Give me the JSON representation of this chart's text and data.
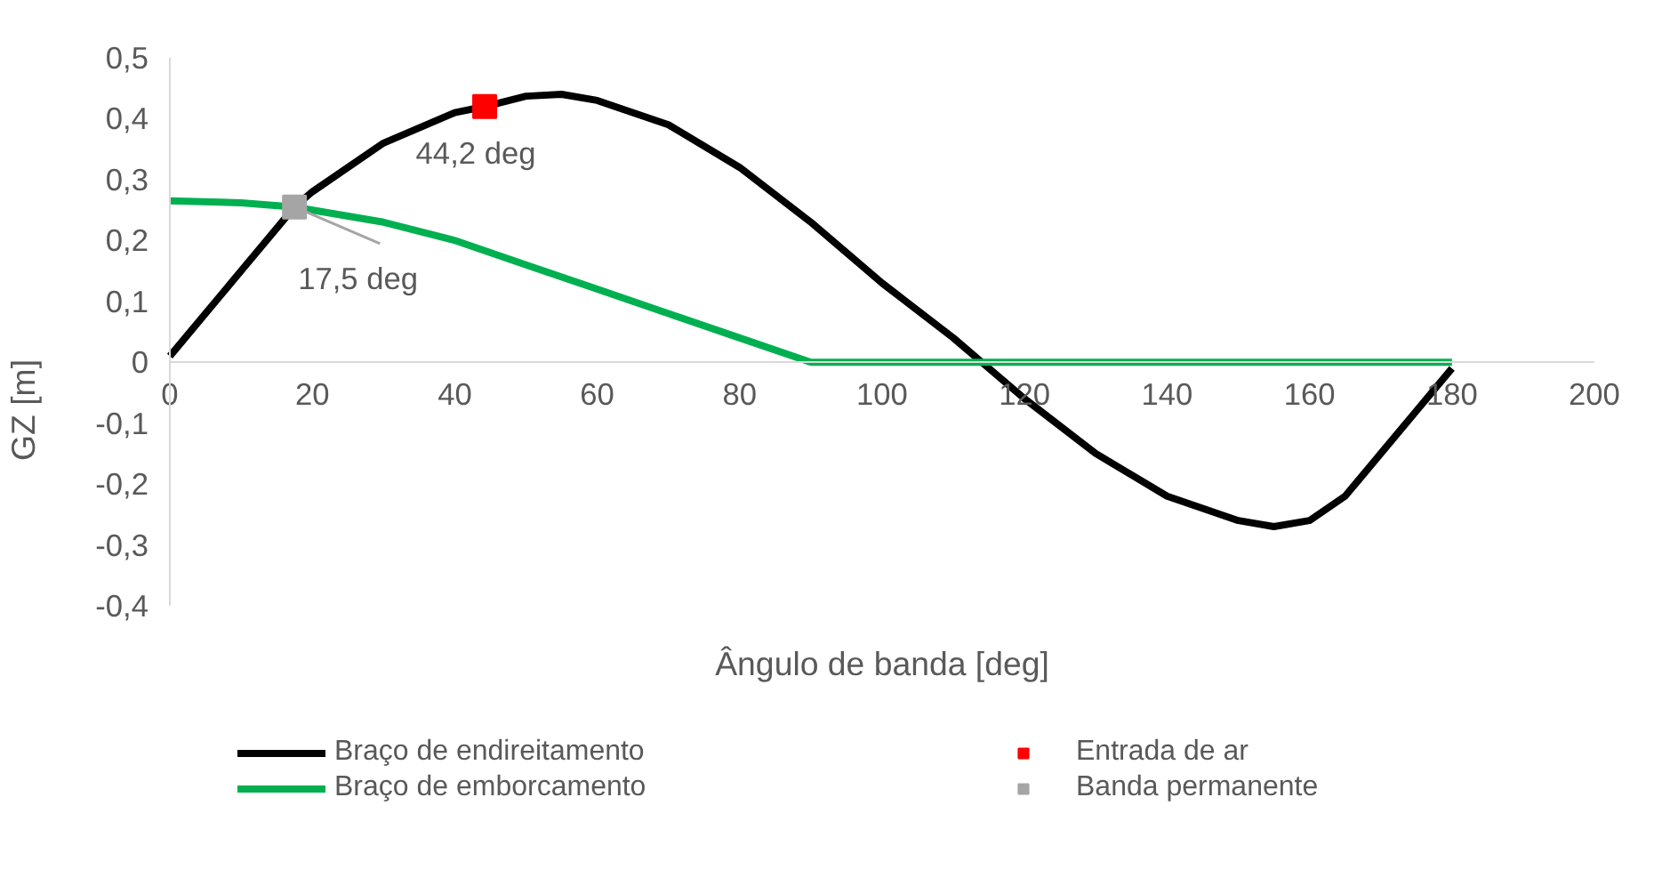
{
  "chart_data": {
    "type": "line",
    "xlabel": "Ângulo de banda [deg]",
    "ylabel": "GZ [m]",
    "xlim": [
      0,
      200
    ],
    "xticks": [
      0,
      20,
      40,
      60,
      80,
      100,
      120,
      140,
      160,
      180,
      200
    ],
    "ylim": [
      -0.4,
      0.5
    ],
    "yticks": [
      {
        "value": -0.4,
        "label": "-0,4"
      },
      {
        "value": -0.3,
        "label": "-0,3"
      },
      {
        "value": -0.2,
        "label": "-0,2"
      },
      {
        "value": -0.1,
        "label": "-0,1"
      },
      {
        "value": 0,
        "label": "0"
      },
      {
        "value": 0.1,
        "label": "0,1"
      },
      {
        "value": 0.2,
        "label": "0,2"
      },
      {
        "value": 0.3,
        "label": "0,3"
      },
      {
        "value": 0.4,
        "label": "0,4"
      },
      {
        "value": 0.5,
        "label": "0,5"
      }
    ],
    "grid": false,
    "legend": "bottom",
    "line_style": "solid",
    "series": [
      {
        "name": "Braço de endireitamento",
        "color": "#000000",
        "marker": "none",
        "x": [
          0,
          10,
          17.5,
          20,
          30,
          40,
          44.2,
          50,
          55,
          60,
          70,
          80,
          90,
          100,
          110,
          114,
          120,
          130,
          140,
          150,
          155,
          160,
          165,
          170,
          175,
          180
        ],
        "values": [
          0.01,
          0.15,
          0.255,
          0.28,
          0.36,
          0.41,
          0.42,
          0.437,
          0.44,
          0.43,
          0.39,
          0.32,
          0.23,
          0.13,
          0.04,
          0,
          -0.06,
          -0.15,
          -0.22,
          -0.26,
          -0.27,
          -0.26,
          -0.22,
          -0.15,
          -0.08,
          -0.01
        ]
      },
      {
        "name": "Braço de emborcamento",
        "color": "#00b050",
        "marker": "none",
        "x": [
          0,
          10,
          17.5,
          30,
          40,
          50,
          60,
          70,
          80,
          90,
          180
        ],
        "values": [
          0.265,
          0.262,
          0.255,
          0.23,
          0.2,
          0.16,
          0.12,
          0.08,
          0.04,
          0,
          0
        ]
      },
      {
        "name": "Entrada de ar",
        "type": "scatter",
        "color": "#ff0000",
        "marker": "square",
        "x": [
          44.2
        ],
        "values": [
          0.42
        ]
      },
      {
        "name": "Banda permanente",
        "type": "scatter",
        "color": "#a5a5a5",
        "marker": "square",
        "x": [
          17.5
        ],
        "values": [
          0.255
        ]
      }
    ],
    "annotations": [
      {
        "text": "44,2 deg",
        "x": 44.2,
        "y": 0.42
      },
      {
        "text": "17,5 deg",
        "x": 17.5,
        "y": 0.255
      }
    ]
  }
}
